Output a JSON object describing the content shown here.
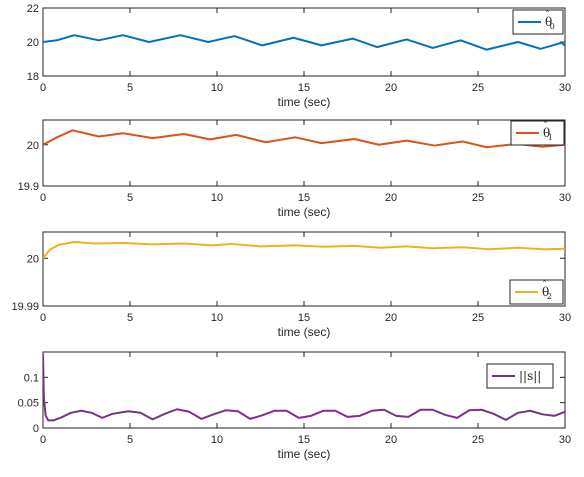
{
  "chart_data": [
    {
      "type": "line",
      "xlabel": "time (sec)",
      "ylabel": "",
      "xlim": [
        0,
        30
      ],
      "ylim": [
        18,
        22
      ],
      "x_ticks": [
        "0",
        "5",
        "10",
        "15",
        "20",
        "25",
        "30"
      ],
      "y_ticks": [
        "18",
        "20",
        "22"
      ],
      "legend_position": "top-right",
      "grid": false,
      "series": [
        {
          "name": "θ̂0",
          "color": "#0072BD",
          "x": [
            0,
            0.8,
            1.8,
            3.2,
            4.6,
            6.1,
            7.9,
            9.5,
            11.0,
            12.6,
            14.4,
            16.0,
            17.8,
            19.2,
            20.9,
            22.4,
            24.0,
            25.5,
            27.3,
            28.6,
            29.8,
            30.0
          ],
          "y": [
            20.0,
            20.1,
            20.4,
            20.1,
            20.4,
            20.0,
            20.4,
            20.0,
            20.35,
            19.8,
            20.25,
            19.8,
            20.2,
            19.7,
            20.15,
            19.65,
            20.1,
            19.55,
            20.0,
            19.6,
            19.95,
            19.8
          ]
        }
      ]
    },
    {
      "type": "line",
      "xlabel": "time (sec)",
      "ylabel": "",
      "xlim": [
        0,
        30
      ],
      "ylim": [
        19.9,
        20.06
      ],
      "x_ticks": [
        "0",
        "5",
        "10",
        "15",
        "20",
        "25",
        "30"
      ],
      "y_ticks": [
        "19.9",
        "20"
      ],
      "legend_position": "top-right",
      "grid": false,
      "series": [
        {
          "name": "θ̂1",
          "color": "#D95319",
          "x": [
            0,
            0.8,
            1.7,
            3.2,
            4.6,
            6.3,
            8.1,
            9.6,
            11.1,
            12.8,
            14.5,
            16.0,
            17.9,
            19.3,
            20.9,
            22.5,
            24.1,
            25.5,
            27.2,
            28.7,
            30.0
          ],
          "y": [
            20.0,
            20.018,
            20.035,
            20.02,
            20.028,
            20.016,
            20.026,
            20.013,
            20.024,
            20.006,
            20.018,
            20.004,
            20.014,
            20.0,
            20.01,
            19.998,
            20.008,
            19.994,
            20.002,
            19.995,
            20.0
          ]
        }
      ]
    },
    {
      "type": "line",
      "xlabel": "time (sec)",
      "ylabel": "",
      "xlim": [
        0,
        30
      ],
      "ylim": [
        19.99,
        20.0055
      ],
      "x_ticks": [
        "0",
        "5",
        "10",
        "15",
        "20",
        "25",
        "30"
      ],
      "y_ticks": [
        "19.99",
        "20"
      ],
      "legend_position": "bottom-right",
      "grid": false,
      "series": [
        {
          "name": "θ̂2",
          "color": "#EDB120",
          "x": [
            0,
            0.4,
            0.9,
            1.8,
            3.0,
            4.6,
            6.3,
            8.1,
            9.7,
            10.8,
            12.5,
            14.5,
            16.1,
            17.9,
            19.4,
            20.9,
            22.4,
            24.1,
            25.6,
            27.3,
            28.8,
            30.0
          ],
          "y": [
            20.0,
            20.0018,
            20.0028,
            20.0034,
            20.0031,
            20.0032,
            20.0029,
            20.0031,
            20.0027,
            20.003,
            20.0025,
            20.0027,
            20.0024,
            20.0026,
            20.0022,
            20.0025,
            20.0021,
            20.0023,
            20.0019,
            20.0022,
            20.0019,
            20.002
          ]
        }
      ]
    },
    {
      "type": "line",
      "xlabel": "time (sec)",
      "ylabel": "",
      "xlim": [
        0,
        30
      ],
      "ylim": [
        0,
        0.15
      ],
      "x_ticks": [
        "0",
        "5",
        "10",
        "15",
        "20",
        "25",
        "30"
      ],
      "y_ticks": [
        "0",
        "0.05",
        "0.1"
      ],
      "legend_position": "top-right",
      "grid": false,
      "series": [
        {
          "name": "||s||",
          "color": "#7E2F8E",
          "x": [
            0,
            0.05,
            0.15,
            0.3,
            0.6,
            1.0,
            1.6,
            2.2,
            2.8,
            3.4,
            4.0,
            4.9,
            5.6,
            6.3,
            7.0,
            7.7,
            8.4,
            9.1,
            9.8,
            10.5,
            11.2,
            11.9,
            12.6,
            13.3,
            14.0,
            14.7,
            15.4,
            16.1,
            16.8,
            17.5,
            18.2,
            18.9,
            19.6,
            20.3,
            21.0,
            21.7,
            22.4,
            23.1,
            23.8,
            24.5,
            25.2,
            25.9,
            26.6,
            27.3,
            28.0,
            28.7,
            29.4,
            30.0
          ],
          "y": [
            0.145,
            0.06,
            0.025,
            0.015,
            0.015,
            0.02,
            0.03,
            0.034,
            0.03,
            0.02,
            0.028,
            0.033,
            0.03,
            0.017,
            0.028,
            0.037,
            0.032,
            0.018,
            0.027,
            0.035,
            0.033,
            0.018,
            0.025,
            0.034,
            0.034,
            0.02,
            0.024,
            0.034,
            0.034,
            0.022,
            0.024,
            0.034,
            0.036,
            0.024,
            0.022,
            0.036,
            0.036,
            0.026,
            0.02,
            0.035,
            0.036,
            0.028,
            0.016,
            0.03,
            0.034,
            0.027,
            0.024,
            0.032
          ]
        }
      ]
    }
  ]
}
